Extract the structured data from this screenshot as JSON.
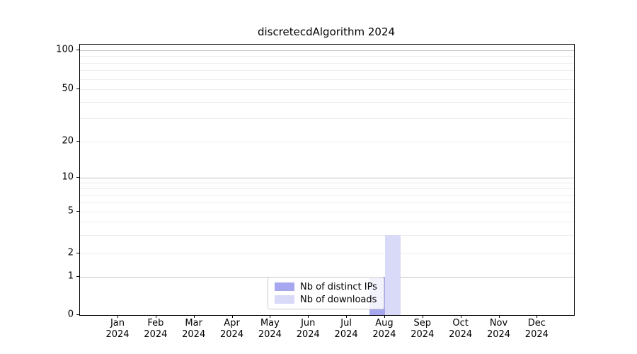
{
  "chart_data": {
    "type": "bar",
    "title": "discretecdAlgorithm 2024",
    "xlabel": "",
    "ylabel": "",
    "x_categories_line1": [
      "Jan",
      "Feb",
      "Mar",
      "Apr",
      "May",
      "Jun",
      "Jul",
      "Aug",
      "Sep",
      "Oct",
      "Nov",
      "Dec"
    ],
    "x_categories_line2": [
      "2024",
      "2024",
      "2024",
      "2024",
      "2024",
      "2024",
      "2024",
      "2024",
      "2024",
      "2024",
      "2024",
      "2024"
    ],
    "series": [
      {
        "name": "Nb of distinct IPs",
        "color": "#a7a7f0",
        "values": [
          0,
          0,
          0,
          0,
          0,
          0,
          0,
          1,
          0,
          0,
          0,
          0
        ]
      },
      {
        "name": "Nb of downloads",
        "color": "#d9d9f8",
        "values": [
          0,
          0,
          0,
          0,
          0,
          0,
          0,
          3,
          0,
          0,
          0,
          0
        ]
      }
    ],
    "y_axis": {
      "scale": "log-like with 0 baseline",
      "tick_values": [
        0,
        1,
        2,
        5,
        10,
        20,
        50,
        100
      ],
      "tick_labels": [
        "0",
        "1",
        "2",
        "5",
        "10",
        "20",
        "50",
        "100"
      ],
      "major_grid_values": [
        1,
        10,
        100
      ],
      "minor_grid_values": [
        2,
        3,
        4,
        5,
        6,
        7,
        8,
        9,
        20,
        30,
        40,
        50,
        60,
        70,
        80,
        90
      ],
      "ylim": [
        0,
        100
      ],
      "grid": "on"
    },
    "legend_position": "bottom-center",
    "colors": {
      "major_grid": "#c6c6c6",
      "minor_grid": "#ededed",
      "axis": "#000000",
      "background": "#ffffff"
    }
  }
}
